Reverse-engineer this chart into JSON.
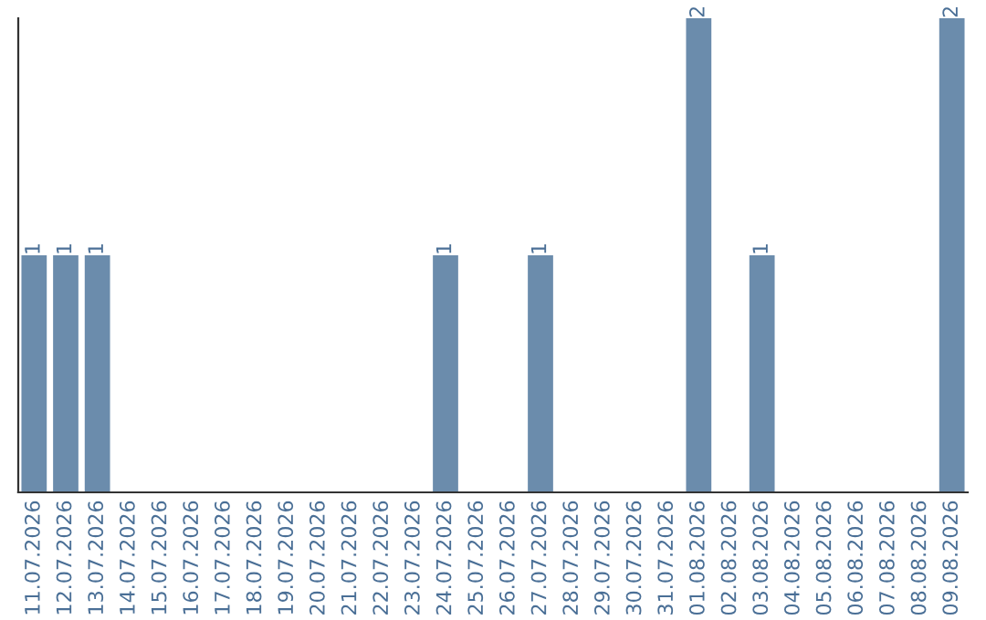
{
  "chart_data": {
    "type": "bar",
    "color": "#6b8cac",
    "categories": [
      "11.07.2026",
      "12.07.2026",
      "13.07.2026",
      "14.07.2026",
      "15.07.2026",
      "16.07.2026",
      "17.07.2026",
      "18.07.2026",
      "19.07.2026",
      "20.07.2026",
      "21.07.2026",
      "22.07.2026",
      "23.07.2026",
      "24.07.2026",
      "25.07.2026",
      "26.07.2026",
      "27.07.2026",
      "28.07.2026",
      "29.07.2026",
      "30.07.2026",
      "31.07.2026",
      "01.08.2026",
      "02.08.2026",
      "03.08.2026",
      "04.08.2026",
      "05.08.2026",
      "06.08.2026",
      "07.08.2026",
      "08.08.2026",
      "09.08.2026"
    ],
    "values": [
      1,
      1,
      1,
      0,
      0,
      0,
      0,
      0,
      0,
      0,
      0,
      0,
      0,
      1,
      0,
      0,
      1,
      0,
      0,
      0,
      0,
      2,
      0,
      1,
      0,
      0,
      0,
      0,
      0,
      2
    ],
    "value_labels": [
      "1",
      "1",
      "1",
      null,
      null,
      null,
      null,
      null,
      null,
      null,
      null,
      null,
      null,
      "1",
      null,
      null,
      "1",
      null,
      null,
      null,
      null,
      "2",
      null,
      "1",
      null,
      null,
      null,
      null,
      null,
      "2"
    ],
    "grid": false,
    "legend": false
  }
}
